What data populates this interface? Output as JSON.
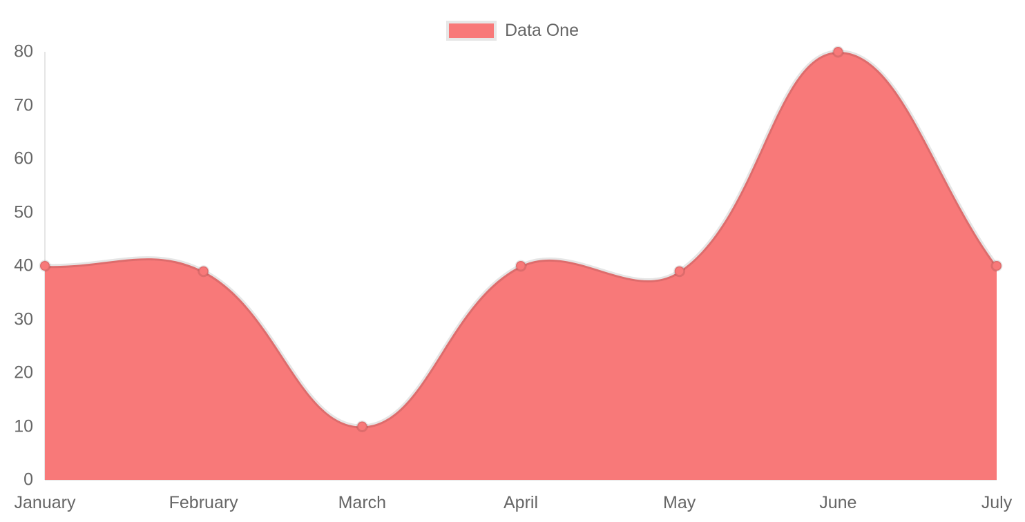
{
  "legend": {
    "label": "Data One"
  },
  "colors": {
    "fill": "#f87979",
    "line": "rgba(0,0,0,0.10)",
    "point_fill": "#f87979",
    "point_border": "rgba(0,0,0,0.10)",
    "axis_line": "rgba(0,0,0,0.10)",
    "text": "#666666",
    "background": "#ffffff",
    "swatch_border": "#e7e7e7"
  },
  "chart_data": {
    "type": "area",
    "title": "",
    "xlabel": "",
    "ylabel": "",
    "categories": [
      "January",
      "February",
      "March",
      "April",
      "May",
      "June",
      "July"
    ],
    "series": [
      {
        "name": "Data One",
        "values": [
          40,
          39,
          10,
          40,
          39,
          80,
          40
        ]
      }
    ],
    "ylim": [
      0,
      80
    ],
    "y_ticks": [
      0,
      10,
      20,
      30,
      40,
      50,
      60,
      70,
      80
    ],
    "grid": false,
    "legend_position": "top-center",
    "line_tension": 0.4,
    "fill_to_zero": true
  }
}
